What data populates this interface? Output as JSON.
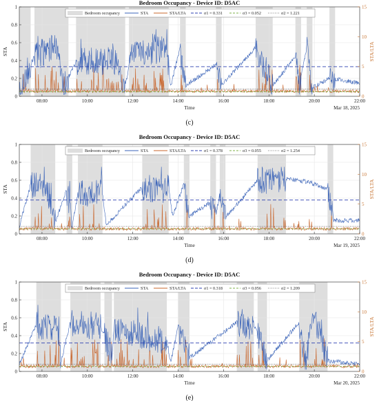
{
  "chart_data": [
    {
      "type": "line",
      "title": "Bedroom Occupancy - Device ID: D5AC",
      "xlabel": "Time",
      "ylabel": "STA",
      "y2label": "STA/LTA",
      "date": "Mar 18, 2025",
      "panel_label": "(c)",
      "x_range": [
        "07:00",
        "22:00"
      ],
      "x_ticks": [
        "08:00",
        "10:00",
        "12:00",
        "14:00",
        "16:00",
        "18:00",
        "20:00",
        "22:00"
      ],
      "ylim": [
        0,
        1
      ],
      "y_ticks": [
        "0",
        "0.2",
        "0.4",
        "0.6",
        "0.8",
        "1"
      ],
      "y2lim": [
        0,
        15
      ],
      "y2_ticks": [
        "0",
        "5",
        "10",
        "15"
      ],
      "legend": {
        "occupancy": "Bedroom occupancy",
        "sta": "STA",
        "sta_lta": "STA/LTA",
        "sigma1": "σ1 = 0.331",
        "sigma3": "σ3 = 0.052",
        "sigma2": "σ2 = 1.221"
      },
      "sigma1": 0.331,
      "sigma3": 0.052,
      "sigma2": 1.221,
      "occupancy_intervals": [
        [
          "07:00",
          "07:30"
        ],
        [
          "07:40",
          "09:10"
        ],
        [
          "09:30",
          "11:40"
        ],
        [
          "11:50",
          "13:35"
        ],
        [
          "14:05",
          "14:20"
        ],
        [
          "15:40",
          "15:55"
        ],
        [
          "17:25",
          "18:10"
        ],
        [
          "19:10",
          "19:25"
        ],
        [
          "19:40",
          "19:55"
        ],
        [
          "20:40",
          "20:55"
        ]
      ],
      "sta_profile": [
        [
          "07:00",
          0.08
        ],
        [
          "07:40",
          0.45
        ],
        [
          "08:10",
          0.5
        ],
        [
          "08:40",
          0.55
        ],
        [
          "08:55",
          0.1
        ],
        [
          "09:30",
          0.38
        ],
        [
          "10:30",
          0.4
        ],
        [
          "11:20",
          0.38
        ],
        [
          "11:40",
          0.1
        ],
        [
          "11:55",
          0.48
        ],
        [
          "12:30",
          0.5
        ],
        [
          "13:30",
          0.52
        ],
        [
          "13:40",
          0.1
        ],
        [
          "14:05",
          0.55
        ],
        [
          "14:20",
          0.12
        ],
        [
          "15:40",
          0.35
        ],
        [
          "15:55",
          0.12
        ],
        [
          "17:25",
          0.55
        ],
        [
          "18:10",
          0.12
        ],
        [
          "19:10",
          0.45
        ],
        [
          "19:20",
          0.1
        ],
        [
          "19:40",
          0.55
        ],
        [
          "19:55",
          0.1
        ],
        [
          "20:40",
          0.2
        ],
        [
          "22:00",
          0.15
        ]
      ]
    },
    {
      "type": "line",
      "title": "Bedroom Occupancy - Device ID: D5AC",
      "xlabel": "Time",
      "ylabel": "STA",
      "y2label": "STA/LTA",
      "date": "Mar 19, 2025",
      "panel_label": "(d)",
      "x_range": [
        "07:00",
        "22:00"
      ],
      "x_ticks": [
        "08:00",
        "10:00",
        "12:00",
        "14:00",
        "16:00",
        "18:00",
        "20:00",
        "22:00"
      ],
      "ylim": [
        0,
        1
      ],
      "y_ticks": [
        "0",
        "0.2",
        "0.4",
        "0.6",
        "0.8",
        "1"
      ],
      "y2lim": [
        0,
        15
      ],
      "y2_ticks": [
        "0",
        "5",
        "10",
        "15"
      ],
      "legend": {
        "occupancy": "Bedroom occupancy",
        "sta": "STA",
        "sta_lta": "STA/LTA",
        "sigma1": "σ1 = 0.378",
        "sigma3": "σ3 = 0.055",
        "sigma2": "σ2 = 1.254"
      },
      "sigma1": 0.378,
      "sigma3": 0.055,
      "sigma2": 1.254,
      "occupancy_intervals": [
        [
          "07:30",
          "08:35"
        ],
        [
          "09:05",
          "09:20"
        ],
        [
          "09:35",
          "10:40"
        ],
        [
          "12:25",
          "13:35"
        ],
        [
          "14:15",
          "14:30"
        ],
        [
          "15:25",
          "15:40"
        ],
        [
          "15:50",
          "16:05"
        ],
        [
          "17:30",
          "18:45"
        ],
        [
          "20:35",
          "20:50"
        ]
      ],
      "sta_profile": [
        [
          "07:00",
          0.08
        ],
        [
          "07:30",
          0.55
        ],
        [
          "08:10",
          0.58
        ],
        [
          "08:35",
          0.12
        ],
        [
          "09:05",
          0.5
        ],
        [
          "09:20",
          0.1
        ],
        [
          "09:35",
          0.45
        ],
        [
          "10:40",
          0.45
        ],
        [
          "10:50",
          0.1
        ],
        [
          "12:25",
          0.52
        ],
        [
          "13:35",
          0.5
        ],
        [
          "13:45",
          0.2
        ],
        [
          "14:15",
          0.55
        ],
        [
          "14:30",
          0.2
        ],
        [
          "15:25",
          0.35
        ],
        [
          "15:40",
          0.2
        ],
        [
          "15:50",
          0.45
        ],
        [
          "16:05",
          0.18
        ],
        [
          "17:30",
          0.6
        ],
        [
          "18:45",
          0.62
        ],
        [
          "19:45",
          0.58
        ],
        [
          "20:35",
          0.5
        ],
        [
          "20:50",
          0.15
        ],
        [
          "22:00",
          0.15
        ]
      ]
    },
    {
      "type": "line",
      "title": "Bedroom Occupancy - Device ID: D5AC",
      "xlabel": "Time",
      "ylabel": "STA",
      "y2label": "STA/LTA",
      "date": "Mar 20, 2025",
      "panel_label": "(e)",
      "x_range": [
        "07:00",
        "22:00"
      ],
      "x_ticks": [
        "08:00",
        "10:00",
        "12:00",
        "14:00",
        "16:00",
        "18:00",
        "20:00",
        "22:00"
      ],
      "ylim": [
        0,
        1
      ],
      "y_ticks": [
        "0",
        "0.2",
        "0.4",
        "0.6",
        "0.8",
        "1"
      ],
      "y2lim": [
        0,
        15
      ],
      "y2_ticks": [
        "0",
        "5",
        "10",
        "15"
      ],
      "legend": {
        "occupancy": "Bedroom occupancy",
        "sta": "STA",
        "sta_lta": "STA/LTA",
        "sigma1": "σ1 = 0.318",
        "sigma3": "σ3 = 0.056",
        "sigma2": "σ2 = 1.209"
      },
      "sigma1": 0.318,
      "sigma3": 0.056,
      "sigma2": 1.209,
      "occupancy_intervals": [
        [
          "07:45",
          "08:50"
        ],
        [
          "09:15",
          "10:35"
        ],
        [
          "10:45",
          "11:05"
        ],
        [
          "11:10",
          "13:30"
        ],
        [
          "14:00",
          "14:30"
        ],
        [
          "16:35",
          "17:20"
        ],
        [
          "17:30",
          "17:55"
        ],
        [
          "19:20",
          "20:35"
        ]
      ],
      "sta_profile": [
        [
          "07:00",
          0.08
        ],
        [
          "07:45",
          0.52
        ],
        [
          "08:40",
          0.5
        ],
        [
          "08:50",
          0.1
        ],
        [
          "09:15",
          0.55
        ],
        [
          "10:35",
          0.5
        ],
        [
          "10:45",
          0.4
        ],
        [
          "11:05",
          0.15
        ],
        [
          "11:10",
          0.45
        ],
        [
          "13:30",
          0.35
        ],
        [
          "13:40",
          0.1
        ],
        [
          "14:00",
          0.5
        ],
        [
          "14:30",
          0.15
        ],
        [
          "16:35",
          0.55
        ],
        [
          "17:20",
          0.5
        ],
        [
          "17:30",
          0.45
        ],
        [
          "17:55",
          0.12
        ],
        [
          "19:20",
          0.55
        ],
        [
          "19:35",
          0.1
        ],
        [
          "20:00",
          0.6
        ],
        [
          "20:35",
          0.12
        ],
        [
          "22:00",
          0.08
        ]
      ]
    }
  ]
}
